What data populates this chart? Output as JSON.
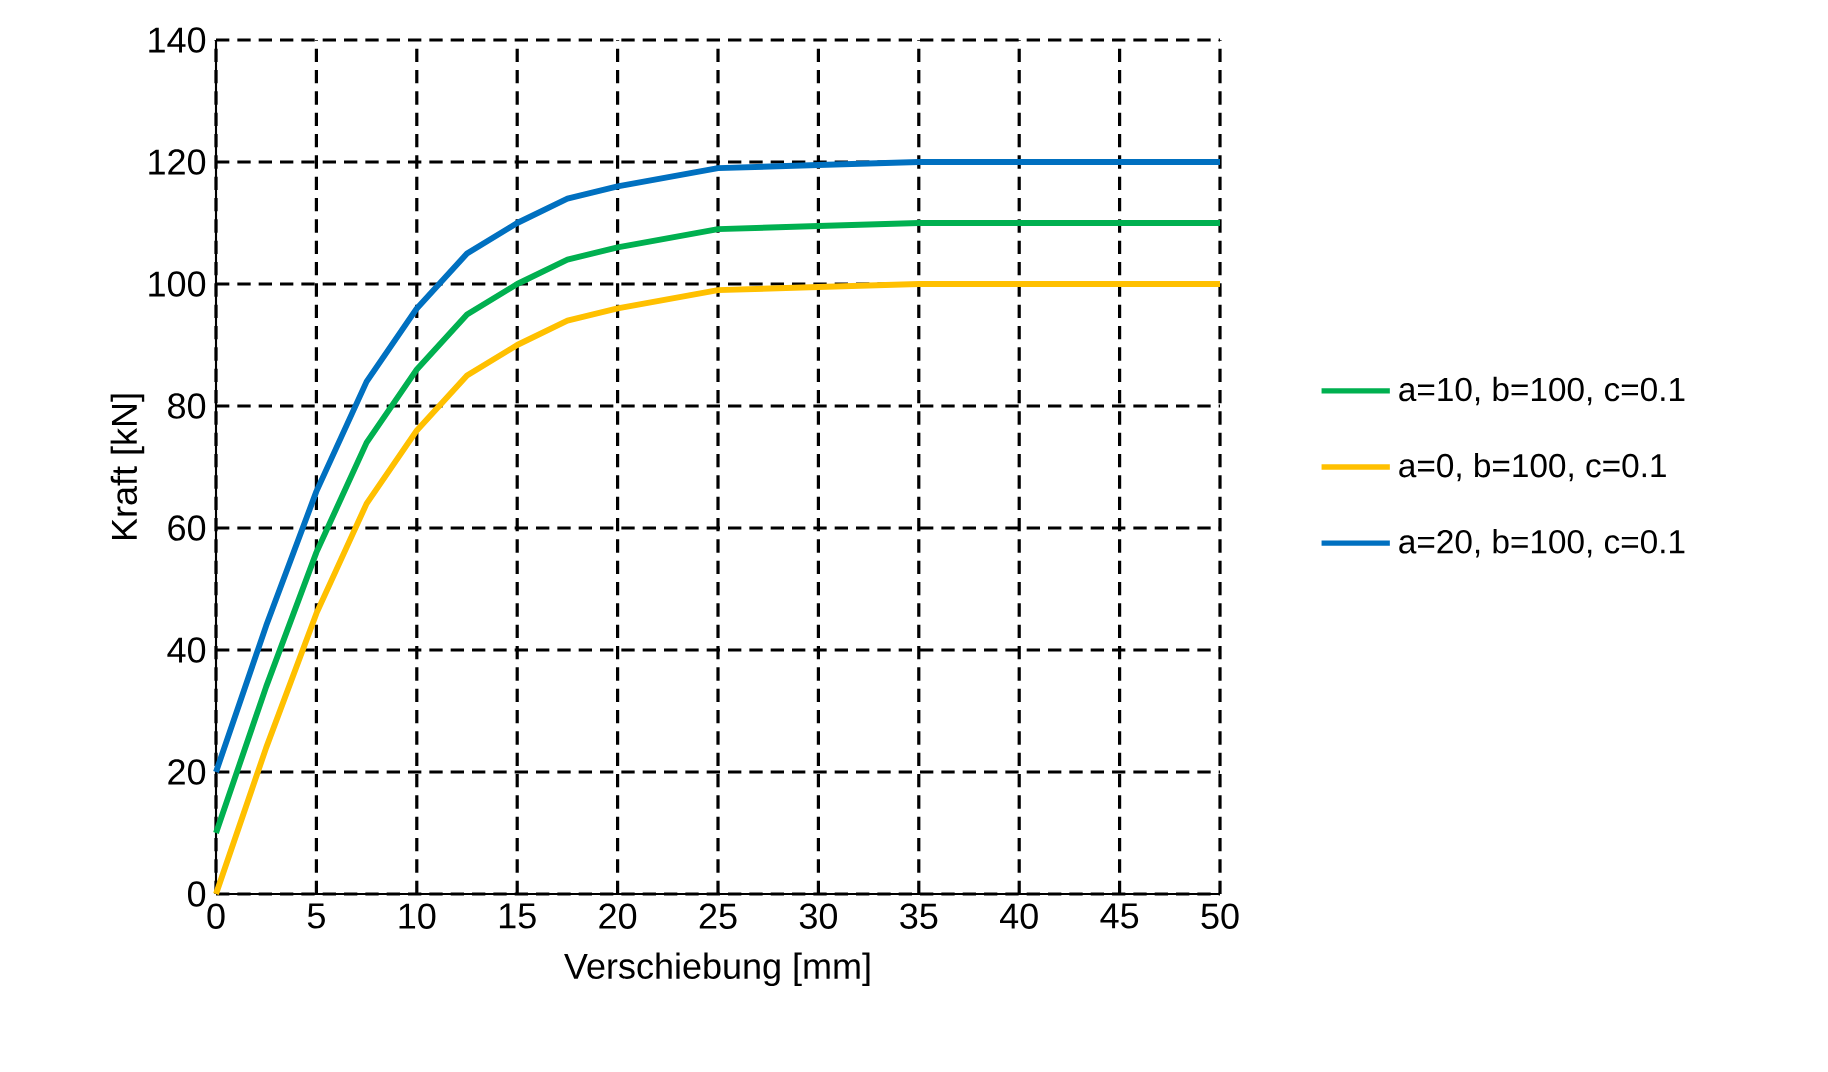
{
  "chart_data": {
    "type": "line",
    "xlabel": "Verschiebung [mm]",
    "ylabel": "Kraft [kN]",
    "x": [
      0,
      2.5,
      5,
      7.5,
      10,
      12.5,
      15,
      17.5,
      20,
      25,
      30,
      35,
      40,
      45,
      50
    ],
    "series": [
      {
        "name": "a=10, b=100, c=0.1",
        "color": "#00b050",
        "values": [
          10,
          34,
          56,
          74,
          86,
          95,
          100,
          104,
          106,
          109,
          109.5,
          110,
          110,
          110,
          110
        ]
      },
      {
        "name": "a=0, b=100, c=0.1",
        "color": "#ffc000",
        "values": [
          0,
          24,
          46,
          64,
          76,
          85,
          90,
          94,
          96,
          99,
          99.5,
          100,
          100,
          100,
          100
        ]
      },
      {
        "name": "a=20, b=100, c=0.1",
        "color": "#0070c0",
        "values": [
          20,
          44,
          66,
          84,
          96,
          105,
          110,
          114,
          116,
          119,
          119.5,
          120,
          120,
          120,
          120
        ]
      }
    ],
    "xlim": [
      0,
      50
    ],
    "ylim": [
      0,
      140
    ],
    "xticks": [
      0,
      5,
      10,
      15,
      20,
      25,
      30,
      35,
      40,
      45,
      50
    ],
    "yticks": [
      0,
      20,
      40,
      60,
      80,
      100,
      120,
      140
    ],
    "grid": true,
    "legend": "right",
    "marker": "none",
    "line_style": "solid"
  }
}
